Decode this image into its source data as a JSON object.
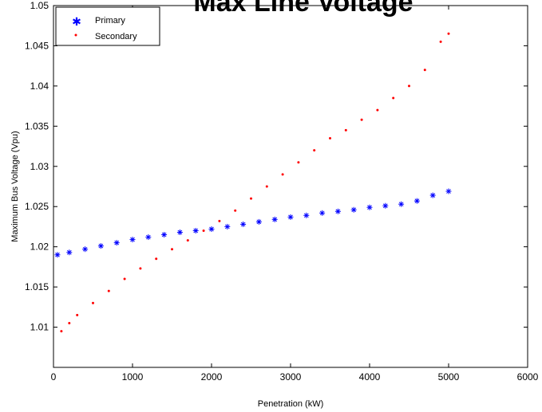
{
  "chart_data": {
    "type": "scatter",
    "title": "Max Line Voltage",
    "xlabel": "Penetration (kW)",
    "ylabel": "Maximum Bus Voltage (Vpu)",
    "xlim": [
      0,
      6000
    ],
    "ylim": [
      1.005,
      1.05
    ],
    "x_ticks": [
      0,
      1000,
      2000,
      3000,
      4000,
      5000,
      6000
    ],
    "y_ticks": [
      1.01,
      1.015,
      1.02,
      1.025,
      1.03,
      1.035,
      1.04,
      1.045,
      1.05
    ],
    "grid": false,
    "legend_position": "top-left",
    "series": [
      {
        "name": "Primary",
        "marker": "asterisk",
        "color": "#0000ff",
        "x": [
          50,
          200,
          400,
          600,
          800,
          1000,
          1200,
          1400,
          1600,
          1800,
          2000,
          2200,
          2400,
          2600,
          2800,
          3000,
          3200,
          3400,
          3600,
          3800,
          4000,
          4200,
          4400,
          4600,
          4800,
          5000
        ],
        "y": [
          1.019,
          1.0193,
          1.0197,
          1.0201,
          1.0205,
          1.0209,
          1.0212,
          1.0215,
          1.0218,
          1.022,
          1.0222,
          1.0225,
          1.0228,
          1.0231,
          1.0234,
          1.0237,
          1.0239,
          1.0242,
          1.0244,
          1.0246,
          1.0249,
          1.0251,
          1.0253,
          1.0257,
          1.0264,
          1.0269
        ]
      },
      {
        "name": "Secondary",
        "marker": "dot",
        "color": "#ff0000",
        "x": [
          100,
          200,
          300,
          500,
          700,
          900,
          1100,
          1300,
          1500,
          1700,
          1900,
          2100,
          2300,
          2500,
          2700,
          2900,
          3100,
          3300,
          3500,
          3700,
          3900,
          4100,
          4300,
          4500,
          4700,
          4900,
          5000
        ],
        "y": [
          1.0095,
          1.0105,
          1.0115,
          1.013,
          1.0145,
          1.016,
          1.0173,
          1.0185,
          1.0197,
          1.0208,
          1.022,
          1.0232,
          1.0245,
          1.026,
          1.0275,
          1.029,
          1.0305,
          1.032,
          1.0335,
          1.0345,
          1.0358,
          1.037,
          1.0385,
          1.04,
          1.042,
          1.0455,
          1.0465
        ]
      }
    ]
  }
}
